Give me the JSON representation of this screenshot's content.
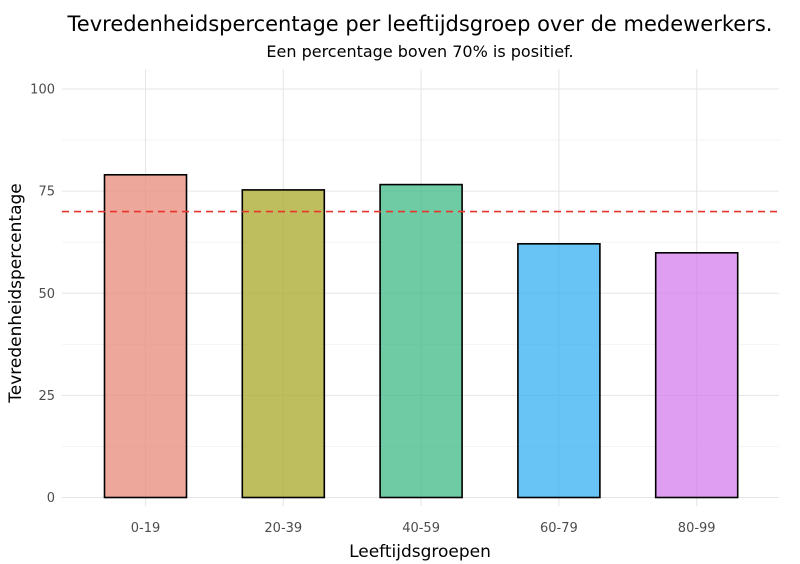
{
  "chart_data": {
    "type": "bar",
    "title": "Tevredenheidspercentage per leeftijdsgroep over de medewerkers.",
    "subtitle": "Een percentage boven 70% is positief.",
    "xlabel": "Leeftijdsgroepen",
    "ylabel": "Tevredenheidspercentage",
    "categories": [
      "0-19",
      "20-39",
      "40-59",
      "60-79",
      "80-99"
    ],
    "values": [
      79,
      75.3,
      76.6,
      62.1,
      59.9
    ],
    "colors": [
      "#e8897a",
      "#a9a82a",
      "#3dba86",
      "#34b0f0",
      "#d57ded"
    ],
    "bar_opacity": 0.75,
    "ylim": [
      0,
      100
    ],
    "yticks": [
      0,
      25,
      50,
      75,
      100
    ],
    "reference_line": {
      "value": 70,
      "color": "#e8352b",
      "style": "dashed"
    },
    "grid": true,
    "legend": "none"
  }
}
